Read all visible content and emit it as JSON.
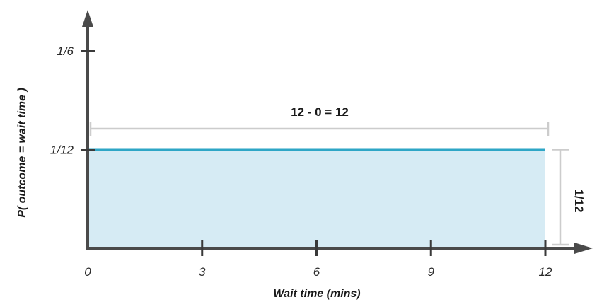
{
  "chart_data": {
    "type": "area",
    "title": "",
    "xlabel": "Wait time (mins)",
    "ylabel": "P( outcome  = wait time )",
    "x_ticks": [
      0,
      3,
      6,
      9,
      12
    ],
    "x_tick_labels": [
      "0",
      "3",
      "6",
      "9",
      "12"
    ],
    "y_ticks": [
      0.0833333,
      0.1666667
    ],
    "y_tick_labels": [
      "1/12",
      "1/6"
    ],
    "xlim": [
      0,
      12
    ],
    "ylim": [
      0,
      0.1666667
    ],
    "grid": false,
    "series": [
      {
        "x": [
          0,
          12
        ],
        "y": [
          0.0833333,
          0.0833333
        ],
        "line_color": "#2ea6c6",
        "fill_color": "#d6ebf4"
      }
    ],
    "annotations": {
      "width_label": "12 - 0  = 12",
      "height_label": "1/12"
    },
    "colors": {
      "axis": "#4a4a4a",
      "dimension": "#cccccc"
    }
  }
}
